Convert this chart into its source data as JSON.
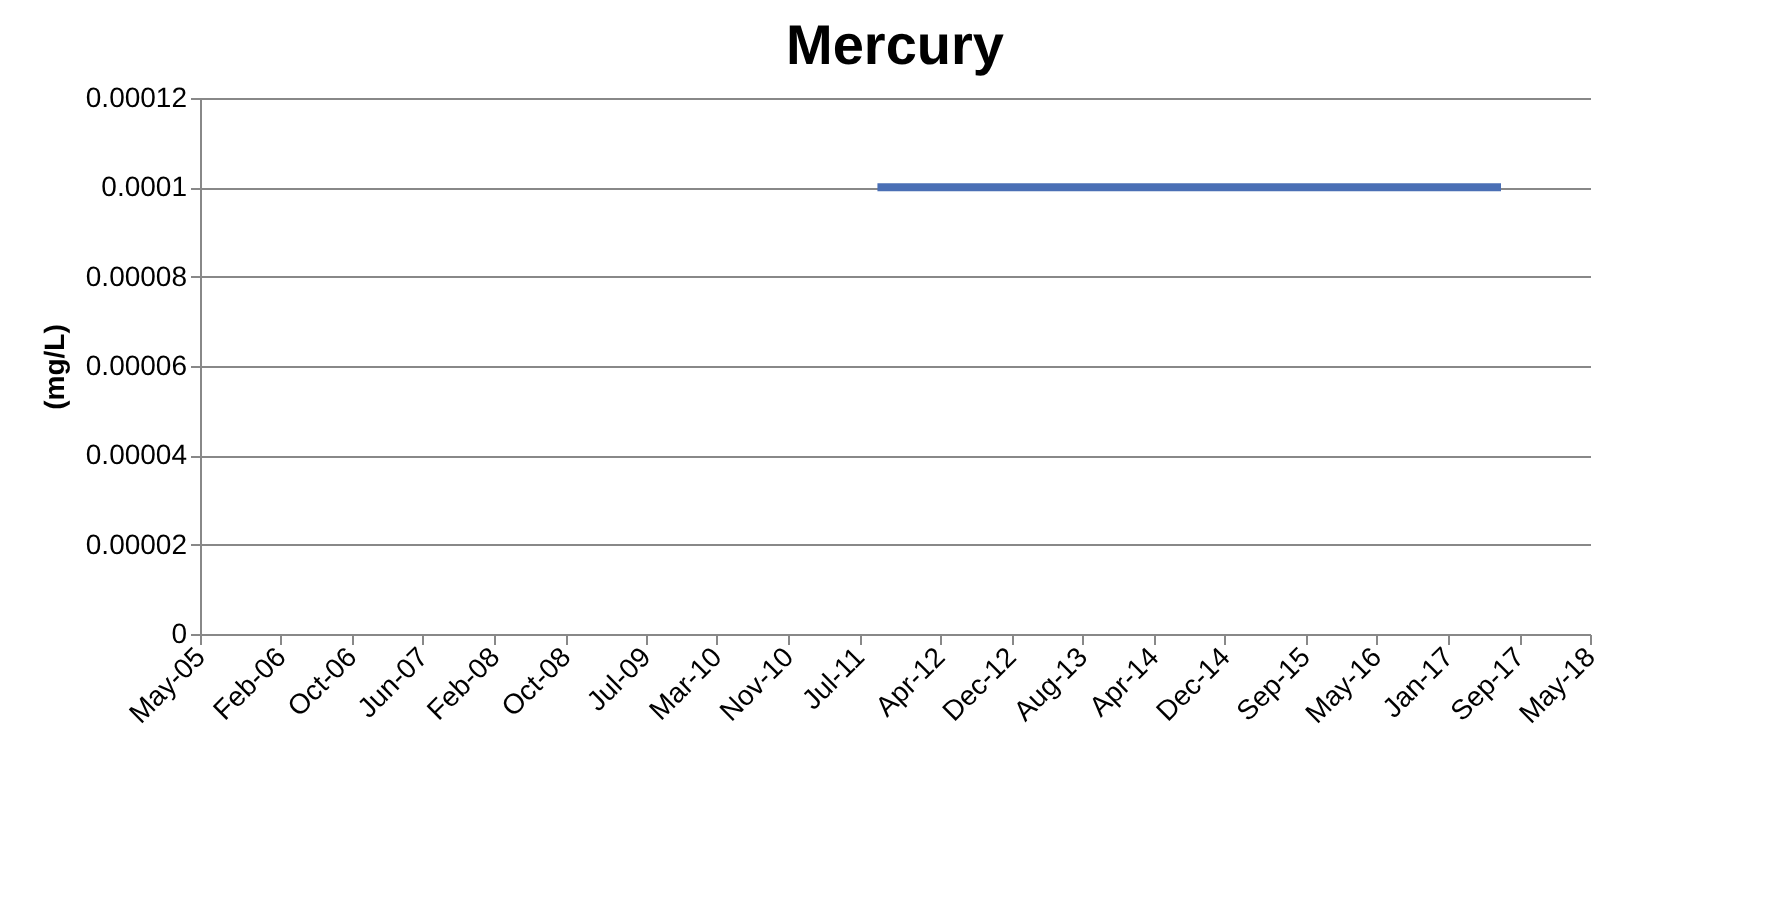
{
  "chart_data": {
    "type": "line",
    "title": "Mercury",
    "ylabel": "(mg/L)",
    "x": [
      "2011-09",
      "2017-07"
    ],
    "series": [
      {
        "color": "#4a6fb5",
        "values": [
          0.0001,
          0.0001
        ]
      }
    ],
    "xlim": [
      "2005-05",
      "2018-05"
    ],
    "xticks": [
      {
        "value": "2005-05",
        "label": "May-05"
      },
      {
        "value": "2006-02",
        "label": "Feb-06"
      },
      {
        "value": "2006-10",
        "label": "Oct-06"
      },
      {
        "value": "2007-06",
        "label": "Jun-07"
      },
      {
        "value": "2008-02",
        "label": "Feb-08"
      },
      {
        "value": "2008-10",
        "label": "Oct-08"
      },
      {
        "value": "2009-07",
        "label": "Jul-09"
      },
      {
        "value": "2010-03",
        "label": "Mar-10"
      },
      {
        "value": "2010-11",
        "label": "Nov-10"
      },
      {
        "value": "2011-07",
        "label": "Jul-11"
      },
      {
        "value": "2012-04",
        "label": "Apr-12"
      },
      {
        "value": "2012-12",
        "label": "Dec-12"
      },
      {
        "value": "2013-08",
        "label": "Aug-13"
      },
      {
        "value": "2014-04",
        "label": "Apr-14"
      },
      {
        "value": "2014-12",
        "label": "Dec-14"
      },
      {
        "value": "2015-09",
        "label": "Sep-15"
      },
      {
        "value": "2016-05",
        "label": "May-16"
      },
      {
        "value": "2017-01",
        "label": "Jan-17"
      },
      {
        "value": "2017-09",
        "label": "Sep-17"
      },
      {
        "value": "2018-05",
        "label": "May-18"
      }
    ],
    "ylim": [
      0,
      0.00012
    ],
    "yticks": [
      0,
      {
        "value": 2e-05,
        "label": "0.00002"
      },
      {
        "value": 4e-05,
        "label": "0.00004"
      },
      {
        "value": 6e-05,
        "label": "0.00006"
      },
      {
        "value": 8e-05,
        "label": "0.00008"
      },
      0.0001,
      0.00012
    ],
    "grid": "y",
    "marker": "none",
    "line_style": "solid"
  }
}
